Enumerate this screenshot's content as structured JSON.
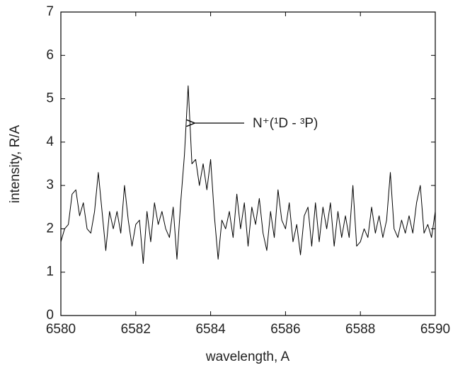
{
  "chart_data": {
    "type": "line",
    "x_label": "wavelength, A",
    "y_label": "intensity, R/A",
    "annotation": "N⁺(¹D - ³P)",
    "color": "#000000",
    "x": [
      6580.0,
      6580.1,
      6580.2,
      6580.3,
      6580.4,
      6580.5,
      6580.6,
      6580.7,
      6580.8,
      6580.9,
      6581.0,
      6581.1,
      6581.2,
      6581.3,
      6581.4,
      6581.5,
      6581.6,
      6581.7,
      6581.8,
      6581.9,
      6582.0,
      6582.1,
      6582.2,
      6582.3,
      6582.4,
      6582.5,
      6582.6,
      6582.7,
      6582.8,
      6582.9,
      6583.0,
      6583.1,
      6583.2,
      6583.3,
      6583.4,
      6583.5,
      6583.6,
      6583.7,
      6583.8,
      6583.9,
      6584.0,
      6584.1,
      6584.2,
      6584.3,
      6584.4,
      6584.5,
      6584.6,
      6584.7,
      6584.8,
      6584.9,
      6585.0,
      6585.1,
      6585.2,
      6585.3,
      6585.4,
      6585.5,
      6585.6,
      6585.7,
      6585.8,
      6585.9,
      6586.0,
      6586.1,
      6586.2,
      6586.3,
      6586.4,
      6586.5,
      6586.6,
      6586.7,
      6586.8,
      6586.9,
      6587.0,
      6587.1,
      6587.2,
      6587.3,
      6587.4,
      6587.5,
      6587.6,
      6587.7,
      6587.8,
      6587.9,
      6588.0,
      6588.1,
      6588.2,
      6588.3,
      6588.4,
      6588.5,
      6588.6,
      6588.7,
      6588.8,
      6588.9,
      6589.0,
      6589.1,
      6589.2,
      6589.3,
      6589.4,
      6589.5,
      6589.6,
      6589.7,
      6589.8,
      6589.9,
      6590.0
    ],
    "values": [
      1.7,
      2.0,
      2.1,
      2.8,
      2.9,
      2.3,
      2.6,
      2.0,
      1.9,
      2.4,
      3.3,
      2.4,
      1.5,
      2.4,
      2.0,
      2.4,
      1.9,
      3.0,
      2.2,
      1.6,
      2.1,
      2.2,
      1.2,
      2.4,
      1.7,
      2.6,
      2.1,
      2.4,
      2.0,
      1.8,
      2.5,
      1.3,
      2.6,
      3.7,
      5.3,
      3.5,
      3.6,
      3.0,
      3.5,
      2.9,
      3.6,
      2.3,
      1.3,
      2.2,
      2.0,
      2.4,
      1.8,
      2.8,
      2.0,
      2.6,
      1.6,
      2.5,
      2.1,
      2.7,
      1.9,
      1.5,
      2.4,
      1.8,
      2.9,
      2.2,
      2.0,
      2.6,
      1.7,
      2.1,
      1.4,
      2.3,
      2.5,
      1.6,
      2.6,
      1.7,
      2.5,
      2.0,
      2.6,
      1.6,
      2.4,
      1.8,
      2.3,
      1.8,
      3.0,
      1.6,
      1.7,
      2.0,
      1.8,
      2.5,
      1.9,
      2.3,
      1.8,
      2.2,
      3.3,
      2.0,
      1.8,
      2.2,
      1.9,
      2.3,
      1.9,
      2.6,
      3.0,
      1.9,
      2.1,
      1.8,
      2.4
    ],
    "xlim": [
      6580,
      6590
    ],
    "xticks": [
      6580,
      6582,
      6584,
      6586,
      6588,
      6590
    ],
    "ylim": [
      0,
      7
    ],
    "yticks": [
      0,
      1,
      2,
      3,
      4,
      5,
      6,
      7
    ],
    "grid": false
  }
}
